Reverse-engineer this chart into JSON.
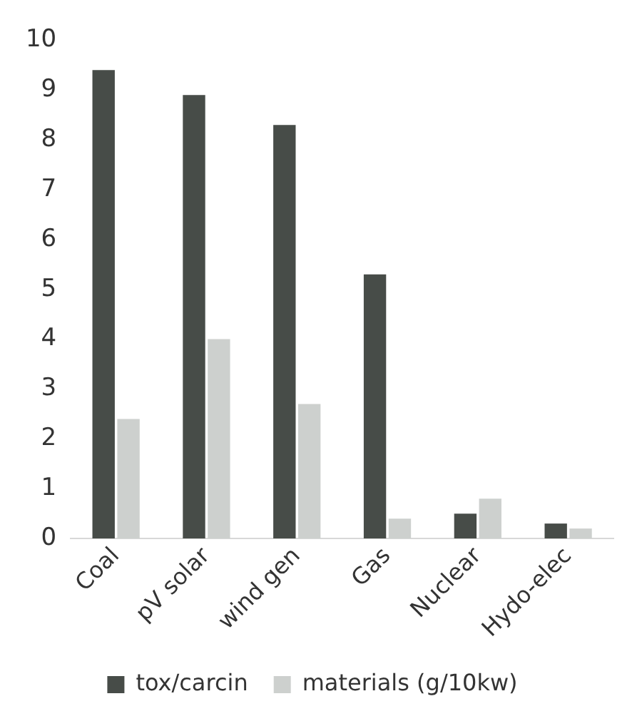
{
  "chart_data": {
    "type": "bar",
    "categories": [
      "Coal",
      "pV solar",
      "wind gen",
      "Gas",
      "Nuclear",
      "Hydo-elec"
    ],
    "series": [
      {
        "name": "tox/carcin",
        "color": "#474c48",
        "values": [
          9.4,
          8.9,
          8.3,
          5.3,
          0.5,
          0.3
        ]
      },
      {
        "name": "materials (g/10kw)",
        "color": "#cdd0ce",
        "values": [
          2.4,
          4.0,
          2.7,
          0.4,
          0.8,
          0.2
        ]
      }
    ],
    "ylim": [
      0,
      10
    ],
    "yticks": [
      0,
      1,
      2,
      3,
      4,
      5,
      6,
      7,
      8,
      9,
      10
    ],
    "grid": false,
    "legend": "bottom"
  }
}
